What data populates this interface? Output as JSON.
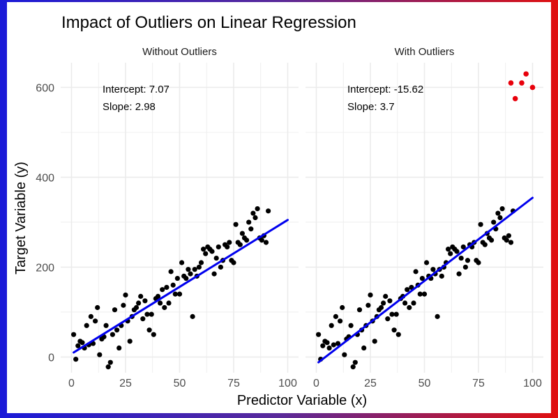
{
  "chart_data": {
    "type": "scatter",
    "title": "Impact of Outliers on Linear Regression",
    "xlabel": "Predictor Variable (x)",
    "ylabel": "Target Variable (y)",
    "xlim": [
      -5,
      105
    ],
    "ylim": [
      -35,
      655
    ],
    "x_ticks": [
      "0",
      "25",
      "50",
      "75",
      "100"
    ],
    "x_tick_values": [
      0,
      25,
      50,
      75,
      100
    ],
    "y_ticks": [
      "0",
      "200",
      "400",
      "600"
    ],
    "y_tick_values": [
      0,
      200,
      400,
      600
    ],
    "grid": true,
    "colors": {
      "points": "#000000",
      "outliers": "#e8000b",
      "fit_line": "#0000ee",
      "grid": "#ebebeb"
    },
    "panels": [
      {
        "strip_label": "Without Outliers",
        "annotation": {
          "intercept": "Intercept: 7.07",
          "slope": "Slope: 2.98"
        },
        "fit": {
          "intercept": 7.07,
          "slope": 2.98,
          "x_range": [
            1,
            100
          ]
        },
        "outliers": []
      },
      {
        "strip_label": "With Outliers",
        "annotation": {
          "intercept": "Intercept: -15.62",
          "slope": "Slope: 3.7"
        },
        "fit": {
          "intercept": -15.62,
          "slope": 3.7,
          "x_range": [
            1,
            100
          ]
        },
        "outliers": [
          [
            90,
            610
          ],
          [
            92,
            575
          ],
          [
            95,
            610
          ],
          [
            97,
            630
          ],
          [
            100,
            600
          ]
        ]
      }
    ],
    "points": [
      [
        1,
        50
      ],
      [
        2,
        -5
      ],
      [
        3,
        25
      ],
      [
        4,
        35
      ],
      [
        5,
        32
      ],
      [
        6,
        20
      ],
      [
        7,
        70
      ],
      [
        8,
        27
      ],
      [
        9,
        90
      ],
      [
        10,
        30
      ],
      [
        11,
        80
      ],
      [
        12,
        110
      ],
      [
        13,
        5
      ],
      [
        14,
        40
      ],
      [
        15,
        45
      ],
      [
        16,
        70
      ],
      [
        17,
        -22
      ],
      [
        18,
        -12
      ],
      [
        19,
        50
      ],
      [
        20,
        105
      ],
      [
        21,
        60
      ],
      [
        22,
        20
      ],
      [
        23,
        70
      ],
      [
        24,
        115
      ],
      [
        25,
        138
      ],
      [
        26,
        80
      ],
      [
        27,
        35
      ],
      [
        28,
        90
      ],
      [
        29,
        105
      ],
      [
        30,
        110
      ],
      [
        31,
        120
      ],
      [
        32,
        135
      ],
      [
        33,
        85
      ],
      [
        34,
        125
      ],
      [
        35,
        95
      ],
      [
        36,
        60
      ],
      [
        37,
        95
      ],
      [
        38,
        50
      ],
      [
        39,
        130
      ],
      [
        40,
        135
      ],
      [
        41,
        120
      ],
      [
        42,
        150
      ],
      [
        43,
        110
      ],
      [
        44,
        155
      ],
      [
        45,
        120
      ],
      [
        46,
        190
      ],
      [
        47,
        160
      ],
      [
        48,
        140
      ],
      [
        49,
        175
      ],
      [
        50,
        140
      ],
      [
        51,
        210
      ],
      [
        52,
        180
      ],
      [
        53,
        175
      ],
      [
        54,
        195
      ],
      [
        55,
        185
      ],
      [
        56,
        90
      ],
      [
        57,
        195
      ],
      [
        58,
        180
      ],
      [
        59,
        200
      ],
      [
        60,
        210
      ],
      [
        61,
        240
      ],
      [
        62,
        230
      ],
      [
        63,
        245
      ],
      [
        64,
        240
      ],
      [
        65,
        235
      ],
      [
        66,
        185
      ],
      [
        67,
        220
      ],
      [
        68,
        245
      ],
      [
        69,
        200
      ],
      [
        70,
        215
      ],
      [
        71,
        250
      ],
      [
        72,
        245
      ],
      [
        73,
        255
      ],
      [
        74,
        215
      ],
      [
        75,
        210
      ],
      [
        76,
        295
      ],
      [
        77,
        255
      ],
      [
        78,
        250
      ],
      [
        79,
        275
      ],
      [
        80,
        265
      ],
      [
        81,
        260
      ],
      [
        82,
        300
      ],
      [
        83,
        285
      ],
      [
        84,
        320
      ],
      [
        85,
        310
      ],
      [
        86,
        330
      ],
      [
        87,
        265
      ],
      [
        88,
        260
      ],
      [
        89,
        270
      ],
      [
        90,
        255
      ],
      [
        91,
        325
      ]
    ]
  }
}
